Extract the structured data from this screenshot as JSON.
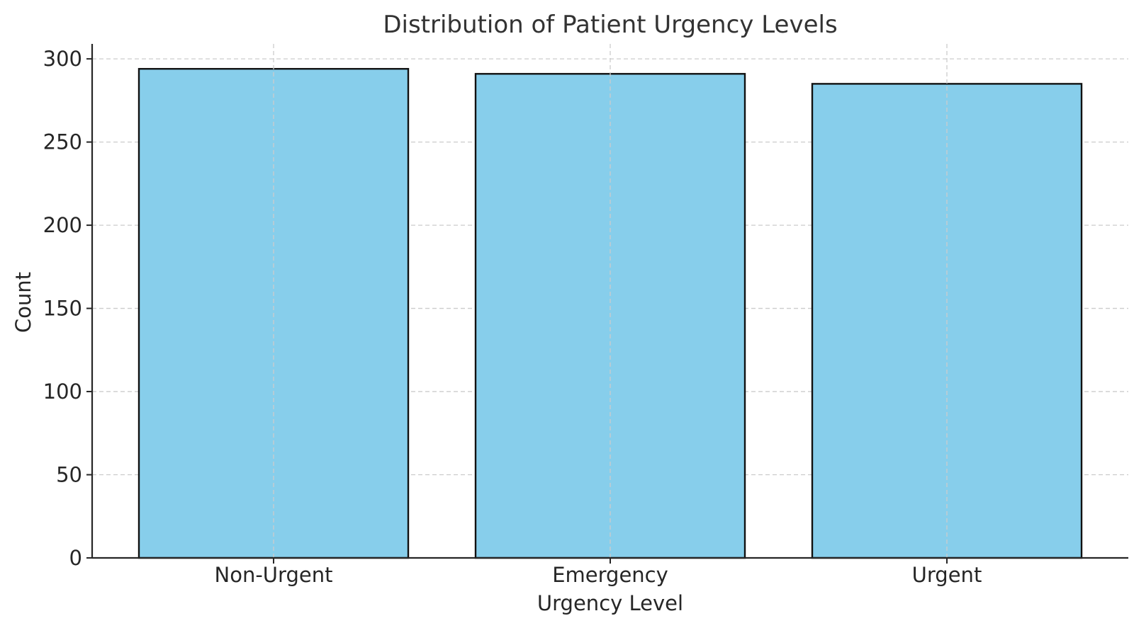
{
  "chart_data": {
    "type": "bar",
    "title": "Distribution of Patient Urgency Levels",
    "xlabel": "Urgency Level",
    "ylabel": "Count",
    "categories": [
      "Non-Urgent",
      "Emergency",
      "Urgent"
    ],
    "values": [
      294,
      291,
      285
    ],
    "ylim": [
      0,
      309
    ],
    "yticks": [
      0,
      50,
      100,
      150,
      200,
      250,
      300
    ],
    "grid": true,
    "legend": "none",
    "bar_color": "#87CEEB",
    "edge_color": "#111111"
  }
}
